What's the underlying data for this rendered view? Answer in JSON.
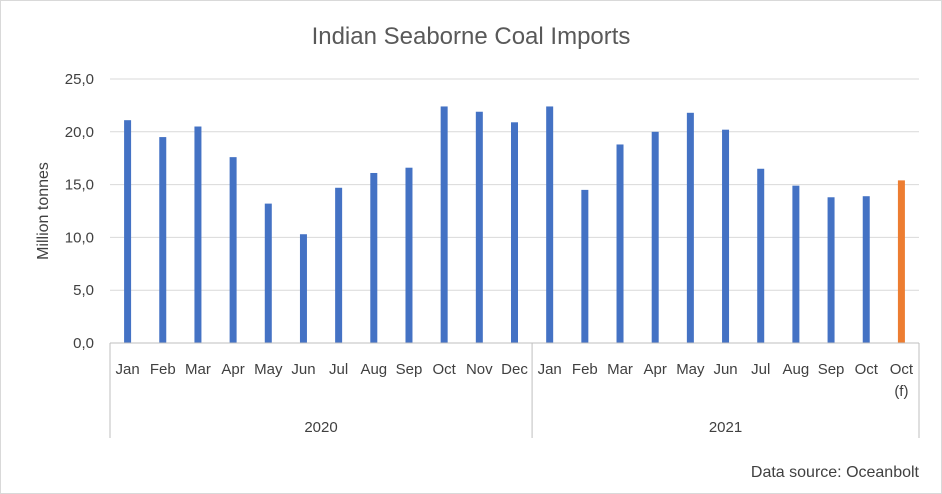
{
  "chart_data": {
    "type": "bar",
    "title": "Indian Seaborne Coal Imports",
    "ylabel": "Million tonnes",
    "xlabel": "",
    "ylim": [
      0,
      25
    ],
    "yticks": [
      "0,0",
      "5,0",
      "10,0",
      "15,0",
      "20,0",
      "25,0"
    ],
    "grid": true,
    "legend": "none",
    "source": "Data source: Oceanbolt",
    "groups": [
      {
        "label": "2020",
        "count": 12
      },
      {
        "label": "2021",
        "count": 11
      }
    ],
    "categories": [
      "Jan",
      "Feb",
      "Mar",
      "Apr",
      "May",
      "Jun",
      "Jul",
      "Aug",
      "Sep",
      "Oct",
      "Nov",
      "Dec",
      "Jan",
      "Feb",
      "Mar",
      "Apr",
      "May",
      "Jun",
      "Jul",
      "Aug",
      "Sep",
      "Oct",
      "Oct\n(f)"
    ],
    "values": [
      21.1,
      19.5,
      20.5,
      17.6,
      13.2,
      10.3,
      14.7,
      16.1,
      16.6,
      22.4,
      21.9,
      20.9,
      22.4,
      14.5,
      18.8,
      20.0,
      21.8,
      20.2,
      16.5,
      14.9,
      13.8,
      13.9,
      15.4
    ],
    "colors": {
      "actual": "#4472c4",
      "forecast": "#ed7d31",
      "grid": "#d9d9d9",
      "axis": "#bfbfbf"
    },
    "forecast_index": 22
  }
}
